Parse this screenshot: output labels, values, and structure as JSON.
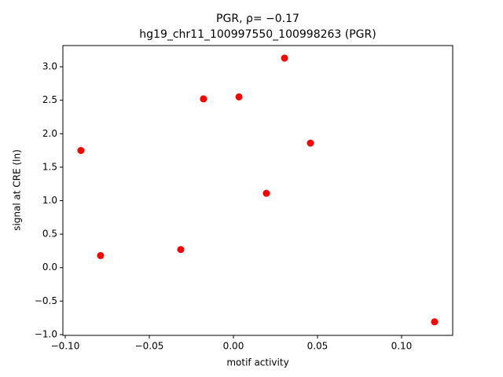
{
  "chart_data": {
    "type": "scatter",
    "title": "PGR, ρ= −0.17",
    "subtitle": "hg19_chr11_100997550_100998263 (PGR)",
    "x_label": "motif activity",
    "y_label": "signal at CRE (ln)",
    "color": "#ff0000",
    "x": [
      -0.0907,
      -0.079,
      -0.0313,
      -0.0178,
      0.0033,
      0.0196,
      0.0304,
      0.0458,
      0.1196
    ],
    "values": [
      1.75,
      0.18,
      0.27,
      2.52,
      2.55,
      1.11,
      3.13,
      1.86,
      -0.81
    ],
    "xlim": [
      -0.1014,
      0.1304
    ],
    "ylim": [
      -1.012,
      3.317
    ],
    "xticks": [
      {
        "value": -0.1,
        "label": "−0.10"
      },
      {
        "value": -0.05,
        "label": "−0.05"
      },
      {
        "value": 0,
        "label": "0.00"
      },
      {
        "value": 0.05,
        "label": "0.05"
      },
      {
        "value": 0.1,
        "label": "0.10"
      }
    ],
    "yticks": [
      {
        "value": -1,
        "label": "−1.0"
      },
      {
        "value": -0.5,
        "label": "−0.5"
      },
      {
        "value": 0,
        "label": "0.0"
      },
      {
        "value": 0.5,
        "label": "0.5"
      },
      {
        "value": 1,
        "label": "1.0"
      },
      {
        "value": 1.5,
        "label": "1.5"
      },
      {
        "value": 2,
        "label": "2.0"
      },
      {
        "value": 2.5,
        "label": "2.5"
      },
      {
        "value": 3,
        "label": "3.0"
      }
    ]
  }
}
